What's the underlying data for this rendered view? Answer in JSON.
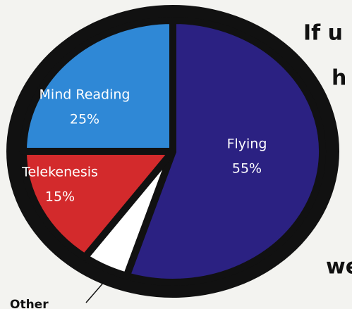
{
  "chart_data": {
    "type": "pie",
    "categories": [
      "Flying",
      "Other",
      "Telekenesis",
      "Mind Reading"
    ],
    "values": [
      55,
      5,
      15,
      25
    ],
    "value_labels": [
      "55%",
      null,
      "15%",
      "25%"
    ],
    "colors": [
      "#2b2182",
      "#ffffff",
      "#d32a2c",
      "#2f88d6"
    ],
    "annotations": [
      "If u",
      "h",
      "we"
    ]
  }
}
